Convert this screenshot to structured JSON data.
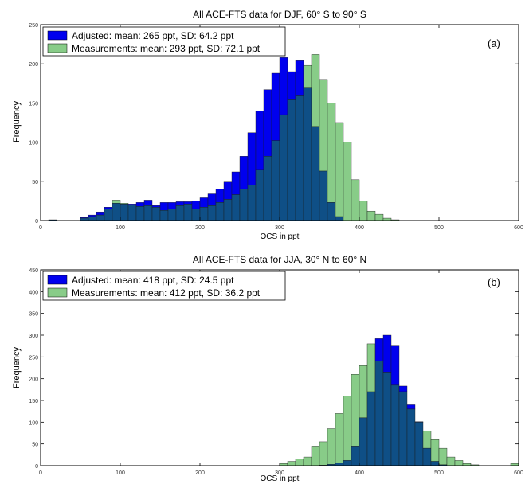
{
  "chart_data": [
    {
      "type": "bar",
      "panel_label": "(a)",
      "title": "All ACE-FTS data for DJF, 60° S to 90° S",
      "xlabel": "OCS in ppt",
      "ylabel": "Frequency",
      "xlim": [
        0,
        600
      ],
      "ylim": [
        0,
        250
      ],
      "xticks": [
        0,
        100,
        200,
        300,
        400,
        500,
        600
      ],
      "yticks": [
        0,
        50,
        100,
        150,
        200,
        250
      ],
      "bin_width": 10,
      "legend_position": "top-left",
      "grid": false,
      "series": [
        {
          "name": "Adjusted: mean: 265 ppt, SD: 64.2 ppt",
          "color": "#0000ee",
          "bins": [
            [
              10,
              1
            ],
            [
              20,
              0
            ],
            [
              30,
              0
            ],
            [
              40,
              0
            ],
            [
              50,
              4
            ],
            [
              60,
              7
            ],
            [
              70,
              11
            ],
            [
              80,
              17
            ],
            [
              90,
              22
            ],
            [
              100,
              21
            ],
            [
              110,
              21
            ],
            [
              120,
              23
            ],
            [
              130,
              26
            ],
            [
              140,
              19
            ],
            [
              150,
              23
            ],
            [
              160,
              23
            ],
            [
              170,
              24
            ],
            [
              180,
              24
            ],
            [
              190,
              25
            ],
            [
              200,
              29
            ],
            [
              210,
              34
            ],
            [
              220,
              40
            ],
            [
              230,
              49
            ],
            [
              240,
              62
            ],
            [
              250,
              82
            ],
            [
              260,
              112
            ],
            [
              270,
              140
            ],
            [
              280,
              167
            ],
            [
              290,
              188
            ],
            [
              300,
              208
            ],
            [
              310,
              190
            ],
            [
              320,
              205
            ],
            [
              330,
              170
            ],
            [
              340,
              120
            ],
            [
              350,
              63
            ],
            [
              360,
              23
            ],
            [
              370,
              5
            ],
            [
              380,
              0
            ]
          ]
        },
        {
          "name": "Measurements: mean: 293 ppt, SD: 72.1 ppt",
          "color": "#88cc88",
          "bins": [
            [
              10,
              1
            ],
            [
              20,
              0
            ],
            [
              30,
              0
            ],
            [
              40,
              0
            ],
            [
              50,
              3
            ],
            [
              60,
              5
            ],
            [
              70,
              7
            ],
            [
              80,
              15
            ],
            [
              90,
              26
            ],
            [
              100,
              22
            ],
            [
              110,
              20
            ],
            [
              120,
              18
            ],
            [
              130,
              19
            ],
            [
              140,
              17
            ],
            [
              150,
              13
            ],
            [
              160,
              15
            ],
            [
              170,
              19
            ],
            [
              180,
              21
            ],
            [
              190,
              15
            ],
            [
              200,
              17
            ],
            [
              210,
              19
            ],
            [
              220,
              23
            ],
            [
              230,
              27
            ],
            [
              240,
              33
            ],
            [
              250,
              40
            ],
            [
              260,
              45
            ],
            [
              270,
              65
            ],
            [
              280,
              82
            ],
            [
              290,
              102
            ],
            [
              300,
              135
            ],
            [
              310,
              155
            ],
            [
              320,
              160
            ],
            [
              330,
              198
            ],
            [
              340,
              212
            ],
            [
              350,
              180
            ],
            [
              360,
              150
            ],
            [
              370,
              125
            ],
            [
              380,
              100
            ],
            [
              390,
              52
            ],
            [
              400,
              25
            ],
            [
              410,
              12
            ],
            [
              420,
              8
            ],
            [
              430,
              3
            ],
            [
              440,
              1
            ]
          ]
        }
      ]
    },
    {
      "type": "bar",
      "panel_label": "(b)",
      "title": "All ACE-FTS data for JJA, 30° N to 60° N",
      "xlabel": "OCS in ppt",
      "ylabel": "Frequency",
      "xlim": [
        0,
        600
      ],
      "ylim": [
        0,
        450
      ],
      "xticks": [
        0,
        100,
        200,
        300,
        400,
        500,
        600
      ],
      "yticks": [
        0,
        50,
        100,
        150,
        200,
        250,
        300,
        350,
        400,
        450
      ],
      "bin_width": 10,
      "legend_position": "top-left",
      "grid": false,
      "series": [
        {
          "name": "Adjusted: mean: 418 ppt, SD: 24.5 ppt",
          "color": "#0000ee",
          "bins": [
            [
              340,
              0
            ],
            [
              350,
              1
            ],
            [
              360,
              3
            ],
            [
              370,
              6
            ],
            [
              380,
              12
            ],
            [
              390,
              45
            ],
            [
              400,
              110
            ],
            [
              410,
              170
            ],
            [
              420,
              292
            ],
            [
              430,
              300
            ],
            [
              440,
              275
            ],
            [
              450,
              183
            ],
            [
              460,
              140
            ],
            [
              470,
              101
            ],
            [
              480,
              40
            ],
            [
              490,
              10
            ],
            [
              500,
              2
            ]
          ]
        },
        {
          "name": "Measurements: mean: 412 ppt, SD: 36.2 ppt",
          "color": "#88cc88",
          "bins": [
            [
              300,
              5
            ],
            [
              310,
              10
            ],
            [
              320,
              15
            ],
            [
              330,
              20
            ],
            [
              340,
              45
            ],
            [
              350,
              55
            ],
            [
              360,
              85
            ],
            [
              370,
              120
            ],
            [
              380,
              160
            ],
            [
              390,
              210
            ],
            [
              400,
              230
            ],
            [
              410,
              280
            ],
            [
              420,
              240
            ],
            [
              430,
              215
            ],
            [
              440,
              185
            ],
            [
              450,
              170
            ],
            [
              460,
              130
            ],
            [
              470,
              100
            ],
            [
              480,
              80
            ],
            [
              490,
              60
            ],
            [
              500,
              40
            ],
            [
              510,
              20
            ],
            [
              520,
              12
            ],
            [
              530,
              5
            ],
            [
              540,
              2
            ],
            [
              550,
              0
            ],
            [
              560,
              0
            ],
            [
              570,
              0
            ],
            [
              580,
              0
            ],
            [
              590,
              5
            ]
          ]
        }
      ]
    }
  ]
}
